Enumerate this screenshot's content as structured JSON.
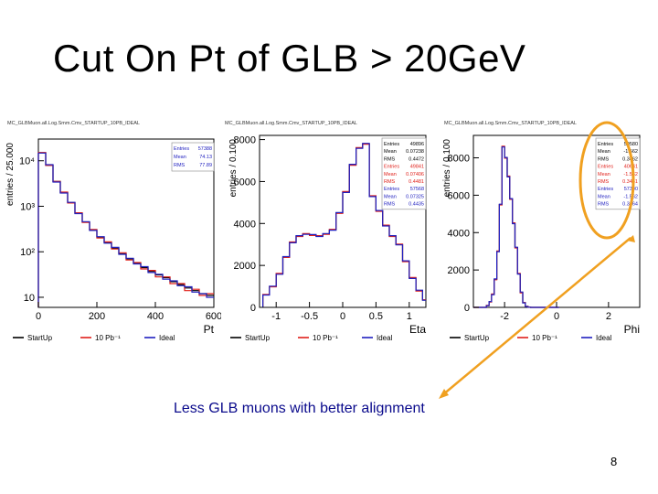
{
  "slide": {
    "title": "Cut On Pt of GLB > 20GeV",
    "caption": "Less GLB muons with better alignment",
    "page_number": "8",
    "highlight_color": "#f0a020"
  },
  "chart_data": [
    {
      "type": "line",
      "header": "MC_GLBMuon.all.Log.Smm.Cmv_STARTUP_10PB_IDEAL",
      "xlabel": "Pt",
      "ylabel": "entries / 25.000",
      "log_y": true,
      "xlim": [
        0,
        600
      ],
      "ylim": [
        6,
        30000
      ],
      "x_ticks": [
        0,
        200,
        400,
        600
      ],
      "y_ticks": [
        {
          "value": 10,
          "label": "10"
        },
        {
          "value": 100,
          "label": "10²"
        },
        {
          "value": 1000,
          "label": "10³"
        },
        {
          "value": 10000,
          "label": "10⁴"
        }
      ],
      "x": [
        0,
        25,
        50,
        75,
        100,
        125,
        150,
        175,
        200,
        225,
        250,
        275,
        300,
        325,
        350,
        375,
        400,
        425,
        450,
        475,
        500,
        525,
        550,
        575
      ],
      "series": [
        {
          "name": "StartUp",
          "color": "#000000",
          "values": [
            15000,
            8000,
            3500,
            2000,
            1200,
            700,
            450,
            300,
            210,
            160,
            120,
            90,
            70,
            56,
            45,
            37,
            31,
            27,
            22,
            19,
            16,
            14,
            12,
            11
          ]
        },
        {
          "name": "10 Pb⁻¹",
          "color": "#e0201a",
          "values": [
            15200,
            7900,
            3500,
            2050,
            1180,
            720,
            440,
            310,
            200,
            165,
            115,
            95,
            66,
            58,
            42,
            39,
            28,
            28,
            20,
            20,
            14,
            15,
            11,
            12
          ]
        },
        {
          "name": "Ideal",
          "color": "#2020c0",
          "values": [
            14800,
            8200,
            3400,
            1950,
            1220,
            690,
            460,
            295,
            215,
            155,
            125,
            88,
            72,
            54,
            47,
            35,
            32,
            25,
            23,
            18,
            17,
            13,
            12,
            10
          ]
        }
      ],
      "stats": [
        {
          "label": "Entries",
          "value": "57388",
          "color": "#2020c0"
        },
        {
          "label": "Mean",
          "value": "74.13",
          "color": "#2020c0"
        },
        {
          "label": "RMS",
          "value": "77.89",
          "color": "#2020c0"
        }
      ],
      "legend": [
        "StartUp",
        "10 Pb⁻¹",
        "Ideal"
      ]
    },
    {
      "type": "line",
      "header": "MC_GLBMuon.all.Log.Smm.Cmv_STARTUP_10PB_IDEAL",
      "xlabel": "Eta",
      "ylabel": "entries / 0.100",
      "log_y": false,
      "xlim": [
        -1.25,
        1.25
      ],
      "ylim": [
        0,
        8200
      ],
      "x_ticks": [
        -1,
        -0.5,
        0,
        0.5,
        1
      ],
      "y_ticks": [
        {
          "value": 0,
          "label": "0"
        },
        {
          "value": 2000,
          "label": "2000"
        },
        {
          "value": 4000,
          "label": "4000"
        },
        {
          "value": 6000,
          "label": "6000"
        },
        {
          "value": 8000,
          "label": "8000"
        }
      ],
      "x": [
        -1.2,
        -1.1,
        -1.0,
        -0.9,
        -0.8,
        -0.7,
        -0.6,
        -0.5,
        -0.4,
        -0.3,
        -0.2,
        -0.1,
        0.0,
        0.1,
        0.2,
        0.3,
        0.4,
        0.5,
        0.6,
        0.7,
        0.8,
        0.9,
        1.0,
        1.1,
        1.2
      ],
      "series": [
        {
          "name": "StartUp",
          "color": "#000000",
          "values": [
            600,
            1000,
            1600,
            2400,
            3100,
            3400,
            3500,
            3450,
            3400,
            3500,
            3700,
            4500,
            5500,
            6800,
            7600,
            7800,
            5300,
            4600,
            3900,
            3400,
            3000,
            2200,
            1400,
            800,
            350
          ]
        },
        {
          "name": "10 Pb⁻¹",
          "color": "#e0201a",
          "values": [
            620,
            980,
            1620,
            2380,
            3120,
            3380,
            3520,
            3430,
            3420,
            3480,
            3720,
            4480,
            5520,
            6780,
            7620,
            7780,
            5320,
            4580,
            3920,
            3380,
            3020,
            2180,
            1420,
            780,
            360
          ]
        },
        {
          "name": "Ideal",
          "color": "#2020c0",
          "values": [
            590,
            1010,
            1580,
            2420,
            3080,
            3420,
            3480,
            3470,
            3380,
            3520,
            3680,
            4520,
            5480,
            6820,
            7580,
            7820,
            5280,
            4620,
            3880,
            3420,
            2980,
            2220,
            1380,
            820,
            340
          ]
        }
      ],
      "stats": [
        {
          "label": "Entries",
          "value": "49896",
          "color": "#000000"
        },
        {
          "label": "Mean",
          "value": "0.07238",
          "color": "#000000"
        },
        {
          "label": "RMS",
          "value": "0.4472",
          "color": "#000000"
        },
        {
          "label": "Entries",
          "value": "49841",
          "color": "#e0201a"
        },
        {
          "label": "Mean",
          "value": "0.07406",
          "color": "#e0201a"
        },
        {
          "label": "RMS",
          "value": "0.4481",
          "color": "#e0201a"
        },
        {
          "label": "Entries",
          "value": "57568",
          "color": "#2020c0"
        },
        {
          "label": "Mean",
          "value": "0.07325",
          "color": "#2020c0"
        },
        {
          "label": "RMS",
          "value": "0.4435",
          "color": "#2020c0"
        }
      ],
      "legend": [
        "StartUp",
        "10 Pb⁻¹",
        "Ideal"
      ]
    },
    {
      "type": "line",
      "header": "MC_GLBMuon.all.Log.Smm.Cmv_STARTUP_10PB_IDEAL",
      "xlabel": "Phi",
      "ylabel": "entries / 0.100",
      "log_y": false,
      "xlim": [
        -3.2,
        3.2
      ],
      "ylim": [
        0,
        9200
      ],
      "x_ticks": [
        -2,
        0,
        2
      ],
      "y_ticks": [
        {
          "value": 0,
          "label": "0"
        },
        {
          "value": 2000,
          "label": "2000"
        },
        {
          "value": 4000,
          "label": "4000"
        },
        {
          "value": 6000,
          "label": "6000"
        },
        {
          "value": 8000,
          "label": "8000"
        }
      ],
      "x": [
        -3.2,
        -3.1,
        -3.0,
        -2.9,
        -2.8,
        -2.7,
        -2.6,
        -2.5,
        -2.4,
        -2.3,
        -2.2,
        -2.1,
        -2.0,
        -1.9,
        -1.8,
        -1.7,
        -1.6,
        -1.5,
        -1.4,
        -1.3,
        -1.2,
        -1.1,
        -1.0,
        -0.9,
        -0.8,
        -0.7,
        -0.6,
        -0.5,
        -0.4,
        -0.3,
        -0.2,
        -0.1,
        0.0
      ],
      "series": [
        {
          "name": "StartUp",
          "color": "#000000",
          "values": [
            0,
            0,
            0,
            0,
            0,
            100,
            300,
            700,
            1500,
            3000,
            5500,
            8600,
            8000,
            7000,
            5800,
            4500,
            3200,
            1800,
            800,
            250,
            50,
            10,
            0,
            0,
            0,
            0,
            0,
            0,
            0,
            0,
            0,
            0,
            0
          ]
        },
        {
          "name": "10 Pb⁻¹",
          "color": "#e0201a",
          "values": [
            0,
            0,
            0,
            0,
            0,
            110,
            290,
            720,
            1480,
            3020,
            5480,
            8620,
            7980,
            7020,
            5780,
            4520,
            3180,
            1820,
            780,
            260,
            55,
            10,
            0,
            0,
            0,
            0,
            0,
            0,
            0,
            0,
            0,
            0,
            0
          ]
        },
        {
          "name": "Ideal",
          "color": "#2020c0",
          "values": [
            0,
            0,
            0,
            0,
            0,
            90,
            310,
            680,
            1520,
            2980,
            5520,
            8580,
            8020,
            6980,
            5820,
            4480,
            3220,
            1780,
            820,
            240,
            45,
            10,
            0,
            0,
            0,
            0,
            0,
            0,
            0,
            0,
            0,
            0,
            0
          ]
        }
      ],
      "stats": [
        {
          "label": "Entries",
          "value": "50580",
          "color": "#000000"
        },
        {
          "label": "Mean",
          "value": "-1.562",
          "color": "#000000"
        },
        {
          "label": "RMS",
          "value": "0.3462",
          "color": "#000000"
        },
        {
          "label": "Entries",
          "value": "40641",
          "color": "#e0201a"
        },
        {
          "label": "Mean",
          "value": "-1.562",
          "color": "#e0201a"
        },
        {
          "label": "RMS",
          "value": "0.3461",
          "color": "#e0201a"
        },
        {
          "label": "Entries",
          "value": "57300",
          "color": "#2020c0"
        },
        {
          "label": "Mean",
          "value": "-1.562",
          "color": "#2020c0"
        },
        {
          "label": "RMS",
          "value": "0.3464",
          "color": "#2020c0"
        }
      ],
      "legend": [
        "StartUp",
        "10 Pb⁻¹",
        "Ideal"
      ]
    }
  ]
}
